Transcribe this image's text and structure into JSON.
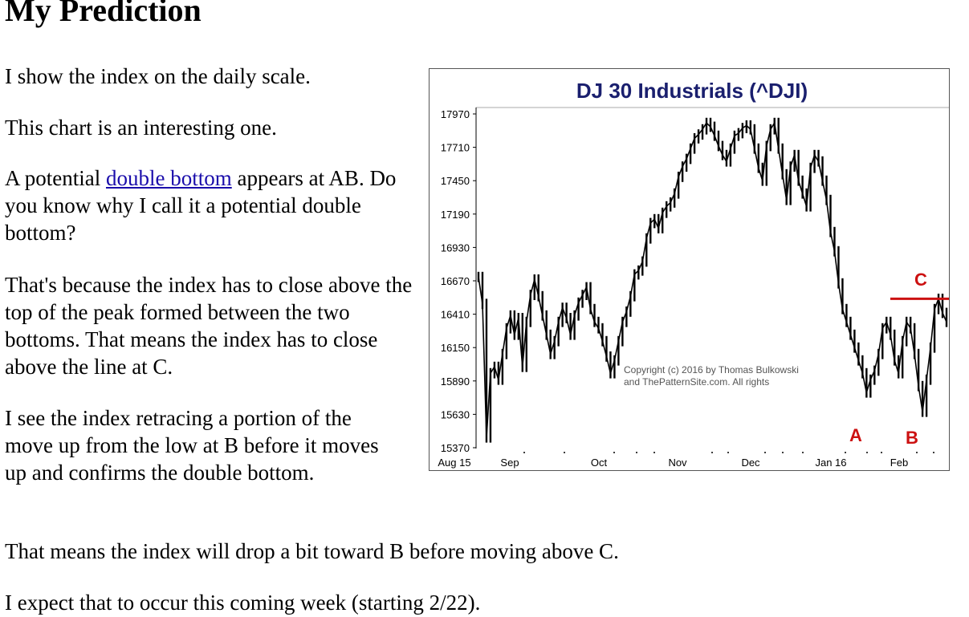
{
  "page": {
    "title": "My Prediction",
    "p1": "I show the index on the daily scale.",
    "p2": "This chart is an interesting one.",
    "p3_before": "A potential ",
    "p3_link": "double bottom",
    "p3_after": " appears at AB. Do you know why I call it a potential double bottom?",
    "p4": "That's because the index has to close above the top of the peak formed between the two bottoms. That means the index has to close above the line at C.",
    "p5": "I see the index retracing a portion of the move up from the low at B before it moves up and confirms the double bottom.",
    "p6": "That means the index will drop a bit toward B before moving above C.",
    "p7": "I expect that to occur this coming week (starting 2/22)."
  },
  "chart_data": {
    "type": "line",
    "title": "DJ 30 Industrials (^DJI)",
    "y_ticks": [
      15370,
      15630,
      15890,
      16150,
      16410,
      16670,
      16930,
      17190,
      17450,
      17710,
      17970
    ],
    "ylim": [
      15370,
      17970
    ],
    "x_tick_labels": [
      "Aug 15",
      "Sep",
      "Oct",
      "Nov",
      "Dec",
      "Jan 16",
      "Feb"
    ],
    "copyright": [
      "Copyright (c) 2016 by Thomas Bulkowski",
      "and ThePatternSite.com. All rights"
    ],
    "annotations": [
      "A",
      "B",
      "C"
    ],
    "resistance_line_C": 16530,
    "series": [
      {
        "values": [
          16700,
          16490,
          15450,
          15950,
          16000,
          15900,
          16100,
          16300,
          16400,
          16250,
          16380,
          16000,
          16350,
          16560,
          16680,
          16550,
          16400,
          16250,
          16100,
          16200,
          16350,
          16460,
          16380,
          16250,
          16400,
          16500,
          16560,
          16620,
          16450,
          16350,
          16300,
          16200,
          16080,
          15950,
          16050,
          16200,
          16350,
          16430,
          16550,
          16720,
          16750,
          16820,
          17000,
          17120,
          17150,
          17080,
          17200,
          17250,
          17280,
          17350,
          17480,
          17560,
          17620,
          17700,
          17780,
          17810,
          17850,
          17900,
          17870,
          17800,
          17720,
          17650,
          17600,
          17700,
          17800,
          17820,
          17860,
          17880,
          17850,
          17700,
          17550,
          17450,
          17720,
          17850,
          17900,
          17700,
          17500,
          17300,
          17560,
          17650,
          17450,
          17350,
          17250,
          17550,
          17650,
          17600,
          17450,
          17300,
          17050,
          16900,
          16650,
          16450,
          16350,
          16250,
          16150,
          16050,
          15950,
          15800,
          15900,
          15970,
          16100,
          16300,
          16350,
          16250,
          16050,
          15950,
          16200,
          16350,
          16300,
          16100,
          15850,
          15650,
          15900,
          16150,
          16450,
          16530,
          16420,
          16350
        ]
      }
    ],
    "series_color": "#000000",
    "annotation_color": "#cc1111",
    "title_color": "#1a1f6e"
  }
}
